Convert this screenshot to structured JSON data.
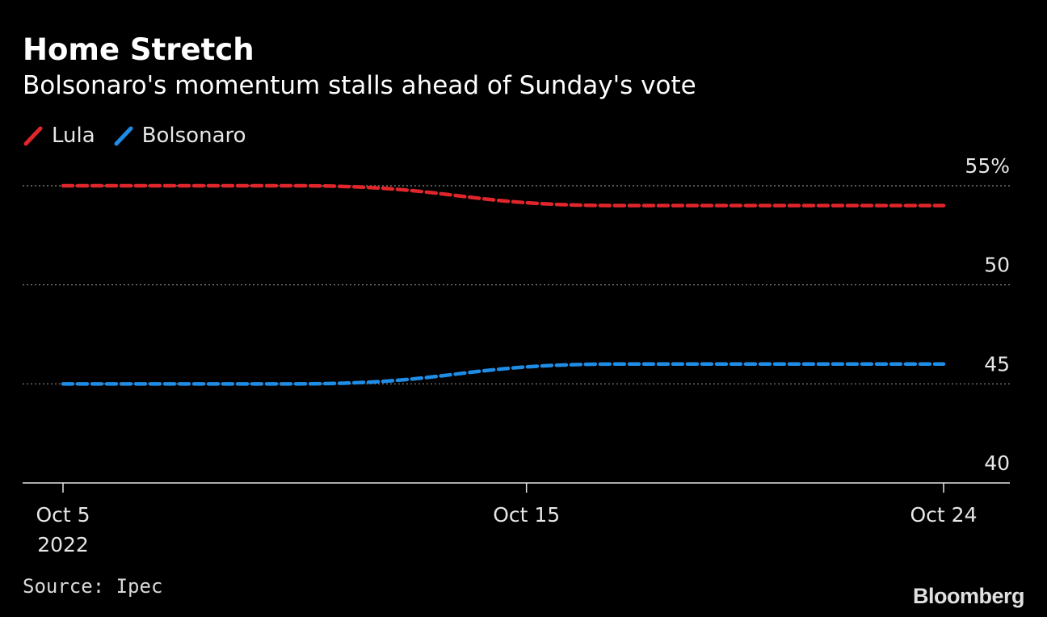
{
  "chart_data": {
    "type": "line",
    "title": "Home Stretch",
    "subtitle": "Bolsonaro's momentum stalls ahead of Sunday's vote",
    "x": [
      "2022-10-05",
      "2022-10-10",
      "2022-10-17",
      "2022-10-24"
    ],
    "x_day_offsets": [
      0,
      5,
      12,
      19
    ],
    "x_range_days": [
      0,
      19
    ],
    "series": [
      {
        "name": "Lula",
        "color": "#e0262b",
        "values": [
          55,
          55,
          54,
          54
        ]
      },
      {
        "name": "Bolsonaro",
        "color": "#1f8ce6",
        "values": [
          45,
          45,
          46,
          46
        ]
      }
    ],
    "ylim": [
      40,
      55
    ],
    "yticks": [
      {
        "value": 55,
        "label": "55%"
      },
      {
        "value": 50,
        "label": "50"
      },
      {
        "value": 45,
        "label": "45"
      },
      {
        "value": 40,
        "label": "40"
      }
    ],
    "xticks": [
      {
        "day": 0,
        "label": "Oct 5",
        "sublabel": "2022"
      },
      {
        "day": 10,
        "label": "Oct 15",
        "sublabel": ""
      },
      {
        "day": 19,
        "label": "Oct 24",
        "sublabel": ""
      }
    ],
    "xlabel": "",
    "ylabel": "",
    "grid": true,
    "legend_position": "top-left"
  },
  "source": "Source: Ipec",
  "brand": "Bloomberg"
}
